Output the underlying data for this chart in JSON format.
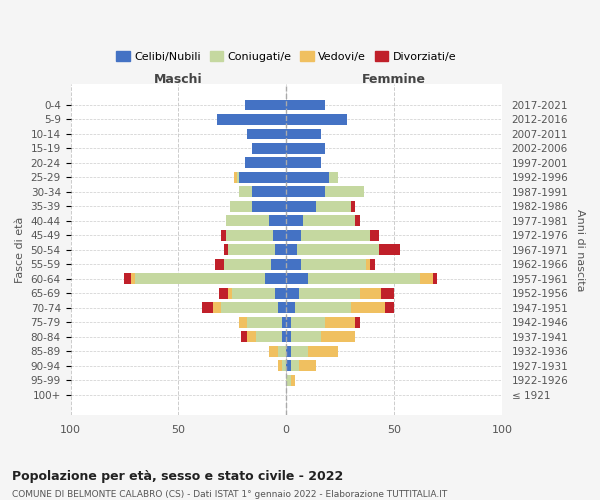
{
  "age_groups": [
    "100+",
    "95-99",
    "90-94",
    "85-89",
    "80-84",
    "75-79",
    "70-74",
    "65-69",
    "60-64",
    "55-59",
    "50-54",
    "45-49",
    "40-44",
    "35-39",
    "30-34",
    "25-29",
    "20-24",
    "15-19",
    "10-14",
    "5-9",
    "0-4"
  ],
  "birth_years": [
    "≤ 1921",
    "1922-1926",
    "1927-1931",
    "1932-1936",
    "1937-1941",
    "1942-1946",
    "1947-1951",
    "1952-1956",
    "1957-1961",
    "1962-1966",
    "1967-1971",
    "1972-1976",
    "1977-1981",
    "1982-1986",
    "1987-1991",
    "1992-1996",
    "1997-2001",
    "2002-2006",
    "2007-2011",
    "2012-2016",
    "2017-2021"
  ],
  "colors": {
    "celibi": "#4472c4",
    "coniugati": "#c5d8a0",
    "vedovi": "#f0c060",
    "divorziati": "#c0202a"
  },
  "maschi": {
    "celibi": [
      0,
      0,
      0,
      0,
      2,
      2,
      4,
      5,
      10,
      7,
      5,
      6,
      8,
      16,
      16,
      22,
      19,
      16,
      18,
      32,
      19
    ],
    "coniugati": [
      0,
      0,
      2,
      4,
      12,
      16,
      26,
      20,
      60,
      22,
      22,
      22,
      20,
      10,
      6,
      1,
      0,
      0,
      0,
      0,
      0
    ],
    "vedovi": [
      0,
      0,
      2,
      4,
      4,
      4,
      4,
      2,
      2,
      0,
      0,
      0,
      0,
      0,
      0,
      1,
      0,
      0,
      0,
      0,
      0
    ],
    "divorziati": [
      0,
      0,
      0,
      0,
      3,
      0,
      5,
      4,
      3,
      4,
      2,
      2,
      0,
      0,
      0,
      0,
      0,
      0,
      0,
      0,
      0
    ]
  },
  "femmine": {
    "celibi": [
      0,
      0,
      2,
      2,
      2,
      2,
      4,
      6,
      10,
      7,
      5,
      7,
      8,
      14,
      18,
      20,
      16,
      18,
      16,
      28,
      18
    ],
    "coniugati": [
      0,
      2,
      4,
      8,
      14,
      16,
      26,
      28,
      52,
      30,
      38,
      32,
      24,
      16,
      18,
      4,
      0,
      0,
      0,
      0,
      0
    ],
    "vedovi": [
      0,
      2,
      8,
      14,
      16,
      14,
      16,
      10,
      6,
      2,
      0,
      0,
      0,
      0,
      0,
      0,
      0,
      0,
      0,
      0,
      0
    ],
    "divorziati": [
      0,
      0,
      0,
      0,
      0,
      2,
      4,
      6,
      2,
      2,
      10,
      4,
      2,
      2,
      0,
      0,
      0,
      0,
      0,
      0,
      0
    ]
  },
  "xlim": 100,
  "title": "Popolazione per età, sesso e stato civile - 2022",
  "subtitle": "COMUNE DI BELMONTE CALABRO (CS) - Dati ISTAT 1° gennaio 2022 - Elaborazione TUTTITALIA.IT",
  "ylabel_left": "Fasce di età",
  "ylabel_right": "Anni di nascita",
  "xlabel_left": "Maschi",
  "xlabel_right": "Femmine",
  "legend_labels": [
    "Celibi/Nubili",
    "Coniugati/e",
    "Vedovi/e",
    "Divorziati/e"
  ],
  "bg_color": "#f5f5f5",
  "plot_bg": "#ffffff"
}
